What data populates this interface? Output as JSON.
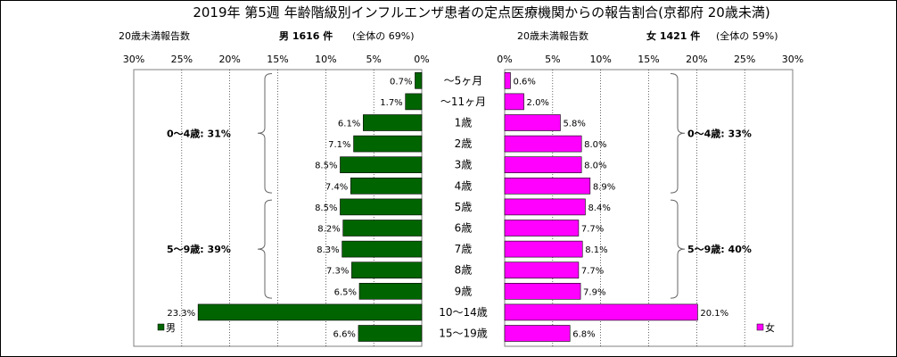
{
  "chart_data": {
    "type": "bar",
    "title": "2019年 第5週 年齢階級別インフルエンザ患者の定点医療機関からの報告割合(京都府 20歳未満)",
    "categories": [
      "〜5ヶ月",
      "〜11ヶ月",
      "1歳",
      "2歳",
      "3歳",
      "4歳",
      "5歳",
      "6歳",
      "7歳",
      "8歳",
      "9歳",
      "10〜14歳",
      "15〜19歳"
    ],
    "unit": "%",
    "xlim": [
      0,
      30
    ],
    "tick_labels": [
      "0%",
      "5%",
      "10%",
      "15%",
      "20%",
      "25%",
      "30%"
    ],
    "grid": true,
    "series": [
      {
        "name": "男",
        "side": "left",
        "color": "#006400",
        "header_left": "20歳未満報告数",
        "header_total": "男 1616 件",
        "header_share": "(全体の 69%)",
        "values": [
          0.7,
          1.7,
          6.1,
          7.1,
          8.5,
          7.4,
          8.5,
          8.2,
          8.3,
          7.3,
          6.5,
          23.3,
          6.6
        ],
        "labels": [
          "0.7%",
          "1.7%",
          "6.1%",
          "7.1%",
          "8.5%",
          "7.4%",
          "8.5%",
          "8.2%",
          "8.3%",
          "7.3%",
          "6.5%",
          "23.3%",
          "6.6%"
        ],
        "groups": [
          {
            "label": "0〜4歳: 31%",
            "from": 0,
            "to": 5
          },
          {
            "label": "5〜9歳: 39%",
            "from": 6,
            "to": 10
          }
        ]
      },
      {
        "name": "女",
        "side": "right",
        "color": "#ff00ff",
        "header_left": "20歳未満報告数",
        "header_total": "女 1421 件",
        "header_share": "(全体の 59%)",
        "values": [
          0.6,
          2.0,
          5.8,
          8.0,
          8.0,
          8.9,
          8.4,
          7.7,
          8.1,
          7.7,
          7.9,
          20.1,
          6.8
        ],
        "labels": [
          "0.6%",
          "2.0%",
          "5.8%",
          "8.0%",
          "8.0%",
          "8.9%",
          "8.4%",
          "7.7%",
          "8.1%",
          "7.7%",
          "7.9%",
          "20.1%",
          "6.8%"
        ],
        "groups": [
          {
            "label": "0〜4歳: 33%",
            "from": 0,
            "to": 5
          },
          {
            "label": "5〜9歳: 40%",
            "from": 6,
            "to": 10
          }
        ]
      }
    ]
  }
}
